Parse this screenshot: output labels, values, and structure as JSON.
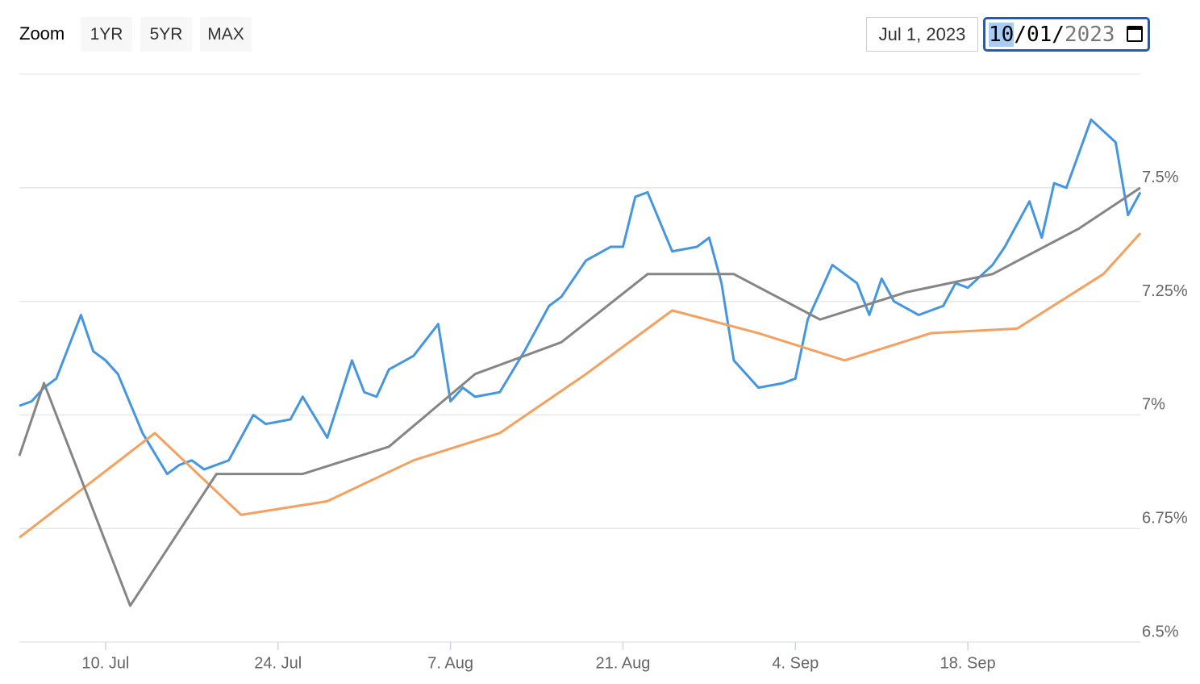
{
  "chart_data": {
    "type": "line",
    "zoom_label": "Zoom",
    "zoom_buttons": [
      "1YR",
      "5YR",
      "MAX"
    ],
    "range_from": "Jul 1, 2023",
    "range_to": [
      "10",
      "/01/",
      "2023"
    ],
    "xlim": [
      "2023-07-03",
      "2023-10-02"
    ],
    "xticks": [
      {
        "value": "2023-07-10",
        "label": "10. Jul"
      },
      {
        "value": "2023-07-24",
        "label": "24. Jul"
      },
      {
        "value": "2023-08-07",
        "label": "7. Aug"
      },
      {
        "value": "2023-08-21",
        "label": "21. Aug"
      },
      {
        "value": "2023-09-04",
        "label": "4. Sep"
      },
      {
        "value": "2023-09-18",
        "label": "18. Sep"
      }
    ],
    "ylim": [
      6.5,
      7.75
    ],
    "yticks": [
      {
        "value": 6.5,
        "label": "6.5%"
      },
      {
        "value": 6.75,
        "label": "6.75%"
      },
      {
        "value": 7,
        "label": "7%"
      },
      {
        "value": 7.25,
        "label": "7.25%"
      },
      {
        "value": 7.5,
        "label": "7.5%"
      }
    ],
    "grid": true,
    "series": [
      {
        "color": "#4596e0",
        "x": [
          "2023-07-03",
          "2023-07-04",
          "2023-07-05",
          "2023-07-06",
          "2023-07-08",
          "2023-07-09",
          "2023-07-10",
          "2023-07-11",
          "2023-07-13",
          "2023-07-15",
          "2023-07-16",
          "2023-07-17",
          "2023-07-18",
          "2023-07-20",
          "2023-07-22",
          "2023-07-23",
          "2023-07-25",
          "2023-07-26",
          "2023-07-28",
          "2023-07-30",
          "2023-07-31",
          "2023-08-01",
          "2023-08-02",
          "2023-08-04",
          "2023-08-06",
          "2023-08-07",
          "2023-08-08",
          "2023-08-09",
          "2023-08-11",
          "2023-08-13",
          "2023-08-15",
          "2023-08-16",
          "2023-08-18",
          "2023-08-20",
          "2023-08-21",
          "2023-08-22",
          "2023-08-23",
          "2023-08-25",
          "2023-08-27",
          "2023-08-28",
          "2023-08-29",
          "2023-08-30",
          "2023-09-01",
          "2023-09-03",
          "2023-09-04",
          "2023-09-05",
          "2023-09-07",
          "2023-09-09",
          "2023-09-10",
          "2023-09-11",
          "2023-09-12",
          "2023-09-14",
          "2023-09-16",
          "2023-09-17",
          "2023-09-18",
          "2023-09-20",
          "2023-09-21",
          "2023-09-23",
          "2023-09-24",
          "2023-09-25",
          "2023-09-26",
          "2023-09-28",
          "2023-09-30",
          "2023-10-01",
          "2023-10-02"
        ],
        "values": [
          7.02,
          7.03,
          7.06,
          7.08,
          7.22,
          7.14,
          7.12,
          7.09,
          6.96,
          6.87,
          6.89,
          6.9,
          6.88,
          6.9,
          7.0,
          6.98,
          6.99,
          7.04,
          6.95,
          7.12,
          7.05,
          7.04,
          7.1,
          7.13,
          7.2,
          7.03,
          7.06,
          7.04,
          7.05,
          7.14,
          7.24,
          7.26,
          7.34,
          7.37,
          7.37,
          7.48,
          7.49,
          7.36,
          7.37,
          7.39,
          7.29,
          7.12,
          7.06,
          7.07,
          7.08,
          7.21,
          7.33,
          7.29,
          7.22,
          7.3,
          7.25,
          7.22,
          7.24,
          7.29,
          7.28,
          7.33,
          7.37,
          7.47,
          7.39,
          7.51,
          7.5,
          7.65,
          7.6,
          7.44,
          7.49
        ]
      },
      {
        "color": "#f5a05e",
        "x": [
          "2023-07-03",
          "2023-07-14",
          "2023-07-21",
          "2023-07-28",
          "2023-08-04",
          "2023-08-11",
          "2023-08-18",
          "2023-08-25",
          "2023-09-01",
          "2023-09-08",
          "2023-09-15",
          "2023-09-22",
          "2023-09-29",
          "2023-10-02"
        ],
        "values": [
          6.73,
          6.96,
          6.78,
          6.81,
          6.9,
          6.96,
          7.09,
          7.23,
          7.18,
          7.12,
          7.18,
          7.19,
          7.31,
          7.4
        ]
      },
      {
        "color": "#858585",
        "x": [
          "2023-07-03",
          "2023-07-05",
          "2023-07-12",
          "2023-07-19",
          "2023-07-26",
          "2023-08-02",
          "2023-08-09",
          "2023-08-16",
          "2023-08-23",
          "2023-08-30",
          "2023-09-06",
          "2023-09-13",
          "2023-09-20",
          "2023-09-27",
          "2023-10-02"
        ],
        "values": [
          6.91,
          7.07,
          6.58,
          6.87,
          6.87,
          6.93,
          7.09,
          7.16,
          7.31,
          7.31,
          7.21,
          7.27,
          7.31,
          7.41,
          7.5
        ]
      }
    ]
  }
}
